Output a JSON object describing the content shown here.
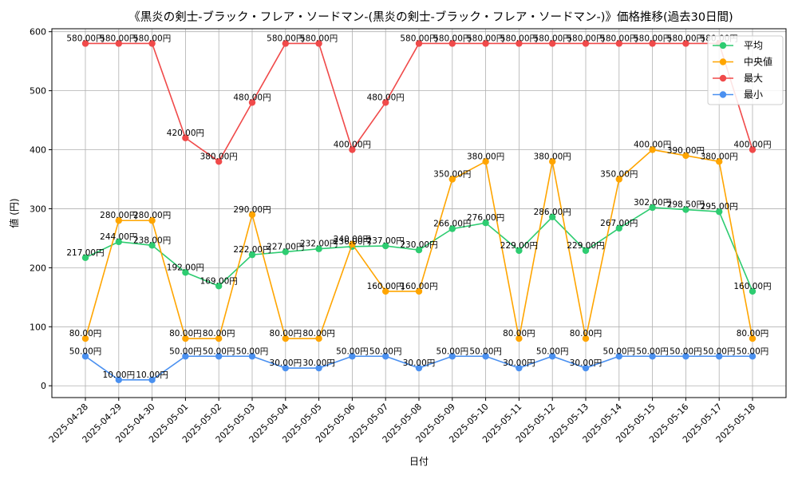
{
  "chart_data": {
    "type": "line",
    "title": "《黒炎の剣士-ブラック・フレア・ソードマン-(黒炎の剣士-ブラック・フレア・ソードマン-)》価格推移(過去30日間)",
    "xlabel": "日付",
    "ylabel": "値 (円)",
    "ylim": [
      -20,
      605
    ],
    "yticks": [
      0,
      100,
      200,
      300,
      400,
      500,
      600
    ],
    "grid": true,
    "legend_position": "top-right",
    "value_suffix": "円",
    "categories": [
      "2025-04-28",
      "2025-04-29",
      "2025-04-30",
      "2025-05-01",
      "2025-05-02",
      "2025-05-03",
      "2025-05-04",
      "2025-05-05",
      "2025-05-06",
      "2025-05-07",
      "2025-05-08",
      "2025-05-09",
      "2025-05-10",
      "2025-05-11",
      "2025-05-12",
      "2025-05-13",
      "2025-05-14",
      "2025-05-15",
      "2025-05-16",
      "2025-05-17",
      "2025-05-18"
    ],
    "series": [
      {
        "name": "平均",
        "color": "#2ecc71",
        "values": [
          217,
          244,
          238,
          192,
          169,
          222,
          227,
          232,
          236,
          237,
          230,
          266,
          276,
          229,
          286,
          229,
          267,
          302,
          298.5,
          295,
          160
        ]
      },
      {
        "name": "中央値",
        "color": "#ffa500",
        "values": [
          80,
          280,
          280,
          80,
          80,
          290,
          80,
          80,
          240,
          160,
          160,
          350,
          380,
          80,
          380,
          80,
          350,
          400,
          390,
          380,
          80
        ]
      },
      {
        "name": "最大",
        "color": "#f04a4a",
        "values": [
          580,
          580,
          580,
          420,
          380,
          480,
          580,
          580,
          400,
          480,
          580,
          580,
          580,
          580,
          580,
          580,
          580,
          580,
          580,
          580,
          400
        ]
      },
      {
        "name": "最小",
        "color": "#4a90f0",
        "values": [
          50,
          10,
          10,
          50,
          50,
          50,
          30,
          30,
          50,
          50,
          30,
          50,
          50,
          30,
          50,
          30,
          50,
          50,
          50,
          50,
          50
        ]
      }
    ]
  }
}
